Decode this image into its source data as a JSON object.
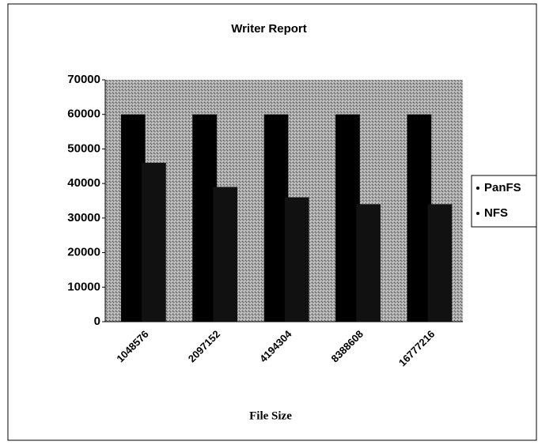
{
  "chart_data": {
    "type": "bar",
    "title": "Writer Report",
    "x_label": "File Size",
    "categories": [
      "1048576",
      "2097152",
      "4194304",
      "8388608",
      "16777216"
    ],
    "series": [
      {
        "name": "PanFS",
        "color": "#000000",
        "values": [
          60000,
          60000,
          60000,
          60000,
          60000
        ]
      },
      {
        "name": "NFS",
        "color": "#111111",
        "values": [
          46000,
          39000,
          36000,
          34000,
          34000
        ]
      }
    ],
    "ylim": [
      0,
      70000
    ],
    "yticks": [
      0,
      10000,
      20000,
      30000,
      40000,
      50000,
      60000,
      70000
    ],
    "legend": "right"
  }
}
